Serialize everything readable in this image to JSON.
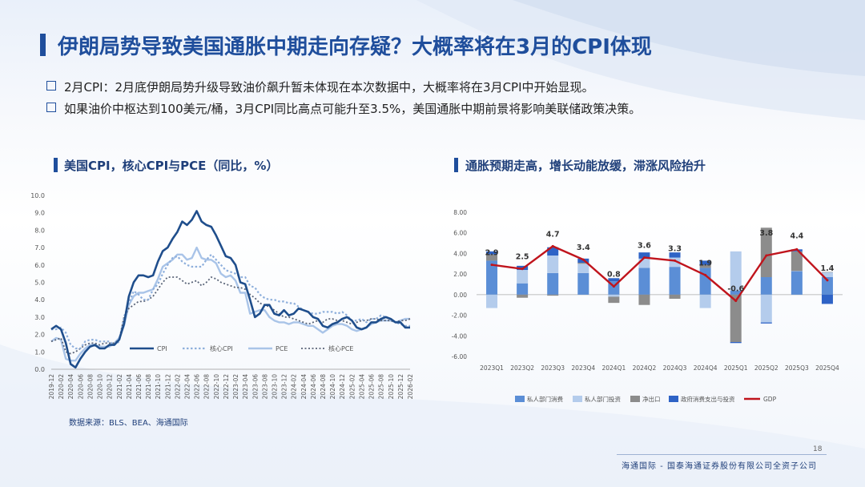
{
  "title": "伊朗局势导致美国通胀中期走向存疑？大概率将在3月的CPI体现",
  "bullets": [
    "2月CPI：2月底伊朗局势升级导致油价飙升暂未体现在本次数据中，大概率将在3月CPI中开始显现。",
    "如果油价中枢达到100美元/桶，3月CPI同比高点可能升至3.5%，美国通胀中期前景将影响美联储政策决策。"
  ],
  "left_subtitle": "美国CPI，核心CPI与PCE（同比，%）",
  "right_subtitle": "通胀预期走高，增长动能放缓，滞涨风险抬升",
  "source": "数据来源：BLS、BEA、海通国际",
  "page_number": "18",
  "footer": "海通国际 - 国泰海通证券股份有限公司全资子公司",
  "colors": {
    "brand": "#1f4e9c",
    "cpi": "#1f4e8c",
    "core_cpi": "#8fb0dc",
    "pce": "#a9c4e8",
    "core_pce": "#5a6478",
    "gdp": "#c0141c"
  },
  "chart_data": [
    {
      "type": "line",
      "ylim": [
        0,
        10
      ],
      "yticks": [
        "0.0",
        "1.0",
        "2.0",
        "3.0",
        "4.0",
        "5.0",
        "6.0",
        "7.0",
        "8.0",
        "9.0",
        "10.0"
      ],
      "xticks": [
        "2019-12",
        "2020-02",
        "2020-04",
        "2020-06",
        "2020-08",
        "2020-10",
        "2020-12",
        "2021-02",
        "2021-04",
        "2021-06",
        "2021-08",
        "2021-10",
        "2021-12",
        "2022-02",
        "2022-04",
        "2022-06",
        "2022-08",
        "2022-10",
        "2022-12",
        "2023-02",
        "2023-04",
        "2023-06",
        "2023-08",
        "2023-10",
        "2023-12",
        "2024-02",
        "2024-04",
        "2024-06",
        "2024-08",
        "2024-10",
        "2024-12",
        "2025-02",
        "2025-04",
        "2025-06",
        "2025-08",
        "2025-10",
        "2025-12",
        "2026-02"
      ],
      "legend": "bottom",
      "series": [
        {
          "name": "CPI",
          "style": "solid-dark",
          "values": [
            2.3,
            2.5,
            2.3,
            1.5,
            0.3,
            0.1,
            0.6,
            1.0,
            1.3,
            1.4,
            1.2,
            1.2,
            1.4,
            1.4,
            1.7,
            2.6,
            4.2,
            5.0,
            5.4,
            5.4,
            5.3,
            5.4,
            6.2,
            6.8,
            7.0,
            7.5,
            7.9,
            8.5,
            8.3,
            8.6,
            9.1,
            8.5,
            8.3,
            8.2,
            7.7,
            7.1,
            6.5,
            6.4,
            6.0,
            5.0,
            4.9,
            4.0,
            3.0,
            3.2,
            3.7,
            3.7,
            3.2,
            3.1,
            3.4,
            3.1,
            3.2,
            3.5,
            3.4,
            3.3,
            3.0,
            2.9,
            2.5,
            2.4,
            2.6,
            2.7,
            2.9,
            3.0,
            2.8,
            2.4,
            2.3,
            2.4,
            2.7,
            2.7,
            2.9,
            3.0,
            2.9,
            2.7,
            2.7,
            2.4,
            2.4
          ]
        },
        {
          "name": "核心CPI",
          "style": "dotted-light",
          "values": [
            2.3,
            2.3,
            2.4,
            2.1,
            1.4,
            1.2,
            1.2,
            1.6,
            1.7,
            1.7,
            1.6,
            1.6,
            1.6,
            1.4,
            1.6,
            3.0,
            3.8,
            4.5,
            4.3,
            4.0,
            4.0,
            4.6,
            4.9,
            5.5,
            6.0,
            6.4,
            6.5,
            6.2,
            6.0,
            5.9,
            5.9,
            5.9,
            6.3,
            6.6,
            6.3,
            6.0,
            5.7,
            5.6,
            5.5,
            5.3,
            5.3,
            4.8,
            4.7,
            4.3,
            4.1,
            4.0,
            4.0,
            3.9,
            3.9,
            3.8,
            3.8,
            3.6,
            3.4,
            3.3,
            3.2,
            3.2,
            3.3,
            3.3,
            3.3,
            3.2,
            3.3,
            3.1,
            2.8,
            2.8,
            2.9,
            2.7,
            2.9,
            2.9,
            3.1,
            3.0,
            2.9,
            2.7,
            2.6,
            2.5,
            2.5
          ]
        },
        {
          "name": "PCE",
          "style": "solid-light",
          "values": [
            1.6,
            1.8,
            1.7,
            0.6,
            0.5,
            0.5,
            0.9,
            1.2,
            1.4,
            1.4,
            1.3,
            1.3,
            1.3,
            1.5,
            1.8,
            2.5,
            3.7,
            4.2,
            4.4,
            4.4,
            4.5,
            4.6,
            5.2,
            5.9,
            6.1,
            6.3,
            6.6,
            6.6,
            6.3,
            6.4,
            7.0,
            6.4,
            6.3,
            6.3,
            6.1,
            5.5,
            5.3,
            5.4,
            5.1,
            4.4,
            4.4,
            3.2,
            3.3,
            3.4,
            3.4,
            3.0,
            2.8,
            2.7,
            2.7,
            2.6,
            2.7,
            2.7,
            2.6,
            2.5,
            2.5,
            2.3,
            2.1,
            2.3,
            2.5,
            2.6,
            2.6,
            2.5,
            2.3,
            2.2,
            2.3,
            2.4,
            2.6,
            2.7,
            2.8,
            2.8,
            2.8,
            2.7,
            2.8,
            2.9,
            2.9
          ]
        },
        {
          "name": "核心PCE",
          "style": "dotted-dark",
          "values": [
            1.6,
            1.7,
            1.8,
            1.0,
            0.9,
            1.0,
            1.2,
            1.4,
            1.5,
            1.5,
            1.4,
            1.5,
            1.5,
            1.5,
            1.7,
            3.0,
            3.5,
            3.7,
            3.9,
            3.9,
            4.0,
            4.2,
            4.6,
            5.0,
            5.3,
            5.3,
            5.3,
            5.1,
            4.9,
            5.0,
            5.1,
            4.8,
            5.0,
            5.3,
            5.2,
            5.0,
            4.9,
            4.8,
            4.7,
            4.7,
            4.6,
            4.3,
            4.1,
            3.8,
            3.7,
            3.6,
            3.4,
            3.2,
            3.0,
            3.0,
            2.9,
            2.8,
            2.7,
            2.6,
            2.7,
            2.8,
            2.7,
            2.9,
            2.9,
            2.8,
            2.8,
            2.7,
            2.6,
            2.7,
            2.8,
            2.8,
            2.9,
            2.9,
            2.8,
            2.8,
            2.8,
            2.7,
            2.8,
            2.8,
            2.9
          ]
        }
      ]
    },
    {
      "type": "bar",
      "stacked": true,
      "ylim": [
        -6,
        8
      ],
      "yticks": [
        "-6.00",
        "-4.00",
        "-2.00",
        "0.00",
        "2.00",
        "4.00",
        "6.00",
        "8.00"
      ],
      "categories": [
        "2023Q1",
        "2023Q2",
        "2023Q3",
        "2023Q4",
        "2024Q1",
        "2024Q2",
        "2024Q3",
        "2024Q4",
        "2025Q1",
        "2025Q2",
        "2025Q3",
        "2025Q4"
      ],
      "legend": "bottom",
      "series": [
        {
          "name": "私人部门消费",
          "color": "#5b8ed6",
          "values": [
            3.3,
            1.1,
            2.1,
            2.1,
            1.3,
            2.6,
            2.7,
            2.6,
            0.4,
            1.7,
            2.3,
            1.7
          ]
        },
        {
          "name": "私人部门投资",
          "color": "#b4ccec",
          "values": [
            -1.3,
            1.3,
            1.7,
            0.9,
            -0.2,
            0.9,
            0.9,
            -1.3,
            3.8,
            -2.7,
            0.0,
            0.5
          ]
        },
        {
          "name": "净出口",
          "color": "#8c8c8c",
          "values": [
            0.6,
            -0.3,
            -0.1,
            0.1,
            -0.6,
            -1.0,
            -0.4,
            0.3,
            -4.6,
            4.8,
            1.9,
            0.0
          ]
        },
        {
          "name": "政府消费支出与投资",
          "color": "#2e63c6",
          "values": [
            0.3,
            0.4,
            0.8,
            0.4,
            0.3,
            0.6,
            0.5,
            0.4,
            -0.1,
            -0.1,
            0.2,
            -0.9
          ]
        },
        {
          "name": "GDP",
          "type": "line",
          "color": "#c0141c",
          "values": [
            2.9,
            2.5,
            4.7,
            3.4,
            0.8,
            3.6,
            3.3,
            1.9,
            -0.6,
            3.8,
            4.4,
            1.4
          ]
        }
      ],
      "data_labels": [
        "2.9",
        "2.5",
        "4.7",
        "3.4",
        "0.8",
        "3.6",
        "3.3",
        "1.9",
        "-0.6",
        "3.8",
        "4.4",
        "1.4"
      ]
    }
  ]
}
